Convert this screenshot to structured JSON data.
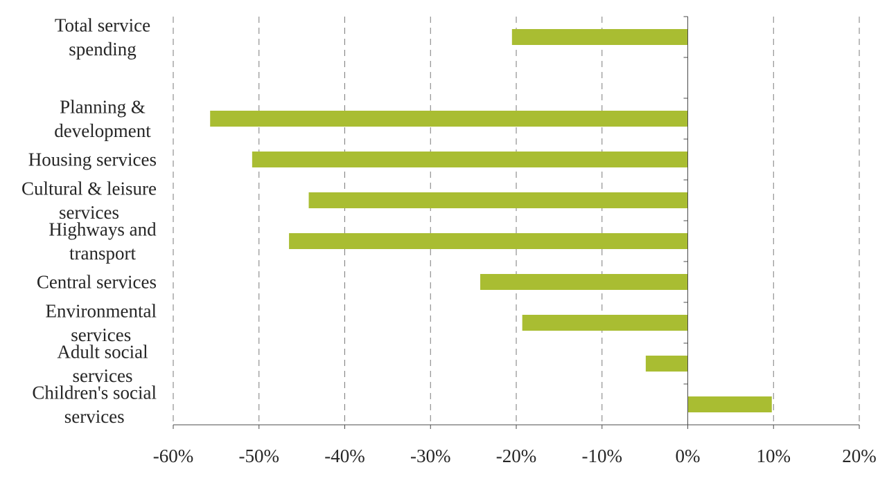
{
  "chart_data": {
    "type": "bar",
    "orientation": "horizontal",
    "title": "",
    "xlabel": "",
    "ylabel": "",
    "xlim": [
      -60,
      20
    ],
    "x_ticks": [
      -60,
      -50,
      -40,
      -30,
      -20,
      -10,
      0,
      10,
      20
    ],
    "tick_labels": [
      "-60%",
      "-50%",
      "-40%",
      "-30%",
      "-20%",
      "-10%",
      "0%",
      "10%",
      "20%"
    ],
    "grid": "vertical dashed",
    "bar_color": "#a9bd32",
    "categories": [
      {
        "label": [
          "Total service",
          "spending"
        ],
        "value": -20.5
      },
      {
        "label": [],
        "value": null
      },
      {
        "label": [
          "Planning &",
          "development"
        ],
        "value": -55.7
      },
      {
        "label": [
          "Housing services"
        ],
        "value": -50.8
      },
      {
        "label": [
          "Cultural & leisure",
          "services"
        ],
        "value": -44.2
      },
      {
        "label": [
          "Highways and",
          "transport"
        ],
        "value": -46.5
      },
      {
        "label": [
          "Central services"
        ],
        "value": -24.2
      },
      {
        "label": [
          "Environmental",
          "services"
        ],
        "value": -19.3
      },
      {
        "label": [
          "Adult social",
          "services"
        ],
        "value": -4.9
      },
      {
        "label": [
          "Children's social",
          "services"
        ],
        "value": 9.8
      }
    ]
  }
}
